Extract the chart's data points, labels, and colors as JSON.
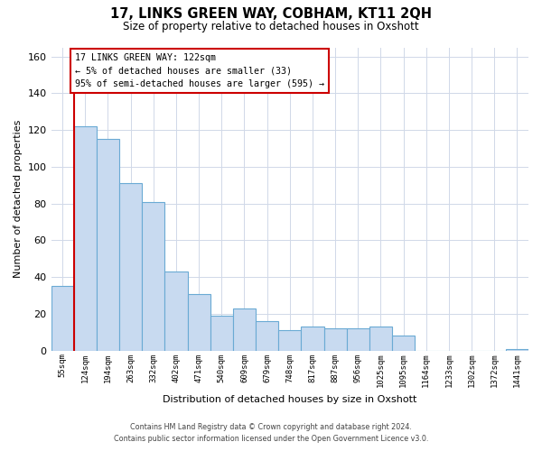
{
  "title": "17, LINKS GREEN WAY, COBHAM, KT11 2QH",
  "subtitle": "Size of property relative to detached houses in Oxshott",
  "xlabel": "Distribution of detached houses by size in Oxshott",
  "ylabel": "Number of detached properties",
  "bar_labels": [
    "55sqm",
    "124sqm",
    "194sqm",
    "263sqm",
    "332sqm",
    "402sqm",
    "471sqm",
    "540sqm",
    "609sqm",
    "679sqm",
    "748sqm",
    "817sqm",
    "887sqm",
    "956sqm",
    "1025sqm",
    "1095sqm",
    "1164sqm",
    "1233sqm",
    "1302sqm",
    "1372sqm",
    "1441sqm"
  ],
  "bar_values": [
    35,
    122,
    115,
    91,
    81,
    43,
    31,
    19,
    23,
    16,
    11,
    13,
    12,
    12,
    13,
    8,
    0,
    0,
    0,
    0,
    1
  ],
  "bar_color": "#c8daf0",
  "bar_edge_color": "#6aaad4",
  "marker_color": "#cc0000",
  "ylim": [
    0,
    165
  ],
  "yticks": [
    0,
    20,
    40,
    60,
    80,
    100,
    120,
    140,
    160
  ],
  "annotation_title": "17 LINKS GREEN WAY: 122sqm",
  "annotation_line1": "← 5% of detached houses are smaller (33)",
  "annotation_line2": "95% of semi-detached houses are larger (595) →",
  "annotation_box_color": "#ffffff",
  "annotation_box_edge": "#cc0000",
  "footer_line1": "Contains HM Land Registry data © Crown copyright and database right 2024.",
  "footer_line2": "Contains public sector information licensed under the Open Government Licence v3.0.",
  "background_color": "#ffffff",
  "grid_color": "#d0d8e8"
}
